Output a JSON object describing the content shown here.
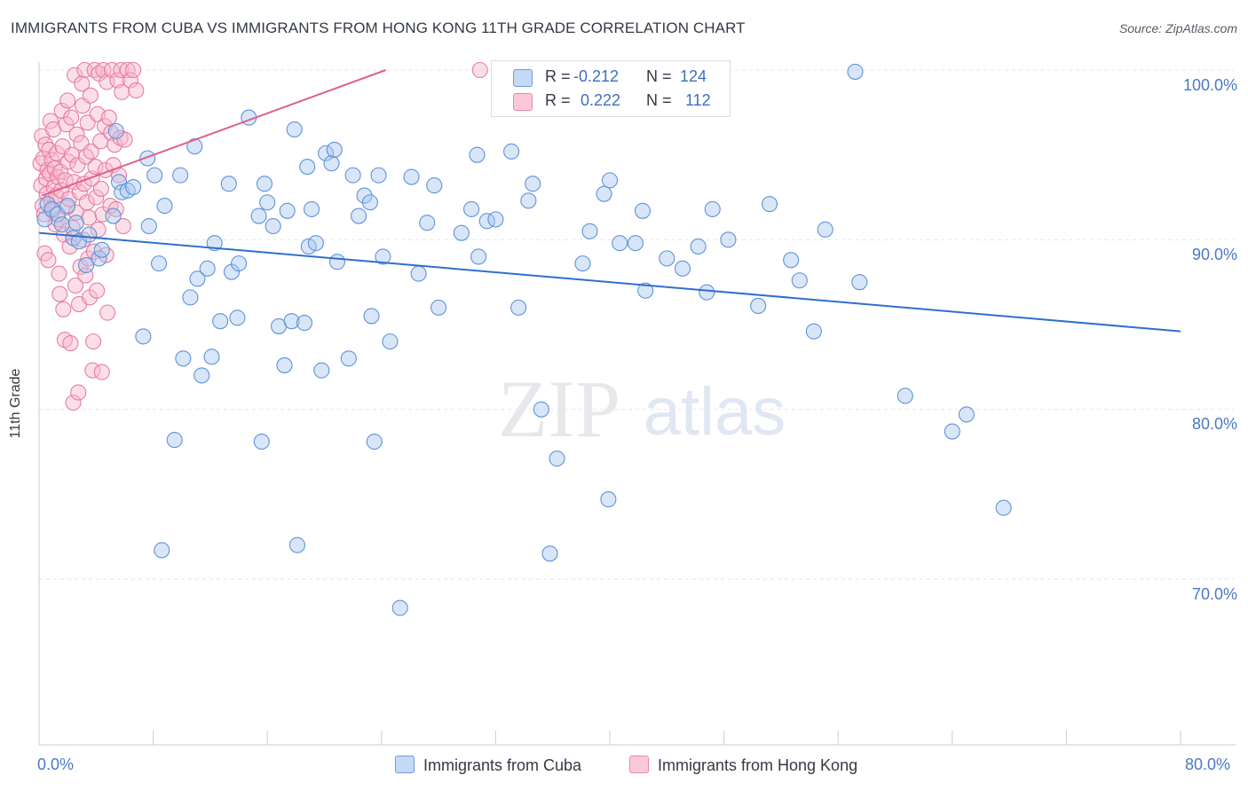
{
  "title": "IMMIGRANTS FROM CUBA VS IMMIGRANTS FROM HONG KONG 11TH GRADE CORRELATION CHART",
  "source": "Source: ZipAtlas.com",
  "watermark": {
    "zip": "ZIP",
    "atlas": "atlas"
  },
  "colors": {
    "cuba_fill": "#a8c8f0",
    "cuba_stroke": "#5f93d8",
    "cuba_line": "#2f6fcd",
    "hk_fill": "#f7b8cc",
    "hk_stroke": "#e97ca0",
    "hk_line": "#e0608c",
    "axis_label": "#4a78c6",
    "grid": "#e3e6ea"
  },
  "legend": {
    "cuba": {
      "r_label": "R =",
      "r_value": "-0.212",
      "n_label": "N =",
      "n_value": "124"
    },
    "hk": {
      "r_label": "R =",
      "r_value": "0.222",
      "n_label": "N =",
      "n_value": "112"
    }
  },
  "bottom_legend": {
    "cuba": "Immigrants from Cuba",
    "hk": "Immigrants from Hong Kong"
  },
  "chart_data": {
    "type": "scatter",
    "title": "IMMIGRANTS FROM CUBA VS IMMIGRANTS FROM HONG KONG 11TH GRADE CORRELATION CHART",
    "xlabel": "",
    "ylabel": "11th Grade",
    "xlim": [
      0,
      80
    ],
    "ylim": [
      60,
      101
    ],
    "x_tick_labels": [
      "0.0%",
      "80.0%"
    ],
    "y_ticks": [
      100,
      90,
      80,
      70
    ],
    "y_tick_labels": [
      "100.0%",
      "90.0%",
      "80.0%",
      "70.0%"
    ],
    "grid": true,
    "series": [
      {
        "name": "Immigrants from Cuba",
        "r": -0.212,
        "n": 124,
        "trend": {
          "x": [
            0,
            80
          ],
          "y": [
            90.4,
            84.6
          ]
        },
        "points": [
          [
            0.4,
            91.2
          ],
          [
            0.6,
            92.1
          ],
          [
            0.9,
            91.8
          ],
          [
            1.3,
            91.5
          ],
          [
            1.6,
            90.9
          ],
          [
            2.0,
            92.0
          ],
          [
            2.4,
            90.1
          ],
          [
            2.6,
            91.0
          ],
          [
            2.8,
            89.9
          ],
          [
            3.3,
            88.5
          ],
          [
            3.5,
            90.3
          ],
          [
            4.2,
            88.9
          ],
          [
            4.4,
            89.4
          ],
          [
            5.2,
            91.4
          ],
          [
            5.4,
            96.4
          ],
          [
            5.6,
            93.4
          ],
          [
            5.8,
            92.8
          ],
          [
            6.2,
            92.9
          ],
          [
            6.6,
            93.1
          ],
          [
            7.3,
            84.3
          ],
          [
            7.6,
            94.8
          ],
          [
            7.7,
            90.8
          ],
          [
            8.1,
            93.8
          ],
          [
            8.4,
            88.6
          ],
          [
            8.6,
            71.7
          ],
          [
            8.8,
            92.0
          ],
          [
            9.5,
            78.2
          ],
          [
            9.9,
            93.8
          ],
          [
            10.1,
            83.0
          ],
          [
            10.6,
            86.6
          ],
          [
            10.9,
            95.5
          ],
          [
            11.1,
            87.7
          ],
          [
            11.4,
            82.0
          ],
          [
            11.8,
            88.3
          ],
          [
            12.1,
            83.1
          ],
          [
            12.3,
            89.8
          ],
          [
            12.7,
            85.2
          ],
          [
            13.3,
            93.3
          ],
          [
            13.5,
            88.1
          ],
          [
            13.9,
            85.4
          ],
          [
            14.0,
            88.6
          ],
          [
            14.7,
            97.2
          ],
          [
            15.4,
            91.4
          ],
          [
            15.6,
            78.1
          ],
          [
            15.8,
            93.3
          ],
          [
            16.0,
            92.2
          ],
          [
            16.4,
            90.8
          ],
          [
            16.8,
            84.9
          ],
          [
            17.2,
            82.6
          ],
          [
            17.4,
            91.7
          ],
          [
            17.7,
            85.2
          ],
          [
            17.9,
            96.5
          ],
          [
            18.1,
            72.0
          ],
          [
            18.6,
            85.1
          ],
          [
            18.8,
            94.3
          ],
          [
            18.9,
            89.6
          ],
          [
            19.1,
            91.8
          ],
          [
            19.4,
            89.8
          ],
          [
            19.8,
            82.3
          ],
          [
            20.1,
            95.1
          ],
          [
            20.5,
            94.5
          ],
          [
            20.7,
            95.3
          ],
          [
            20.9,
            88.7
          ],
          [
            21.7,
            83.0
          ],
          [
            22.0,
            93.8
          ],
          [
            22.4,
            91.4
          ],
          [
            22.8,
            92.6
          ],
          [
            23.2,
            92.2
          ],
          [
            23.3,
            85.5
          ],
          [
            23.5,
            78.1
          ],
          [
            23.8,
            93.8
          ],
          [
            24.1,
            89.0
          ],
          [
            24.6,
            84.0
          ],
          [
            25.3,
            68.3
          ],
          [
            26.1,
            93.7
          ],
          [
            26.6,
            88.0
          ],
          [
            27.2,
            91.0
          ],
          [
            27.7,
            93.2
          ],
          [
            28.0,
            86.0
          ],
          [
            29.6,
            90.4
          ],
          [
            30.3,
            91.8
          ],
          [
            30.7,
            95.0
          ],
          [
            30.8,
            89.0
          ],
          [
            31.4,
            91.1
          ],
          [
            32.0,
            91.2
          ],
          [
            33.1,
            95.2
          ],
          [
            33.6,
            86.0
          ],
          [
            34.3,
            92.3
          ],
          [
            34.6,
            93.3
          ],
          [
            35.2,
            80.0
          ],
          [
            35.8,
            71.5
          ],
          [
            36.3,
            77.1
          ],
          [
            38.1,
            88.6
          ],
          [
            38.6,
            90.5
          ],
          [
            39.6,
            92.7
          ],
          [
            39.9,
            74.7
          ],
          [
            40.0,
            93.5
          ],
          [
            40.7,
            89.8
          ],
          [
            41.8,
            89.8
          ],
          [
            42.3,
            91.7
          ],
          [
            42.5,
            87.0
          ],
          [
            44.0,
            88.9
          ],
          [
            45.1,
            88.3
          ],
          [
            46.2,
            89.6
          ],
          [
            46.8,
            86.9
          ],
          [
            47.2,
            91.8
          ],
          [
            48.3,
            90.0
          ],
          [
            50.4,
            86.1
          ],
          [
            51.2,
            92.1
          ],
          [
            52.7,
            88.8
          ],
          [
            53.3,
            87.6
          ],
          [
            54.3,
            84.6
          ],
          [
            55.1,
            90.6
          ],
          [
            57.2,
            99.9
          ],
          [
            57.5,
            87.5
          ],
          [
            60.7,
            80.8
          ],
          [
            64.0,
            78.7
          ],
          [
            65.0,
            79.7
          ],
          [
            67.6,
            74.2
          ]
        ]
      },
      {
        "name": "Immigrants from Hong Kong",
        "r": 0.222,
        "n": 112,
        "trend": {
          "x": [
            0.2,
            24.3
          ],
          "y": [
            92.6,
            100.0
          ]
        },
        "points": [
          [
            0.1,
            94.5
          ],
          [
            0.15,
            93.2
          ],
          [
            0.2,
            96.1
          ],
          [
            0.25,
            92.0
          ],
          [
            0.3,
            94.8
          ],
          [
            0.35,
            91.5
          ],
          [
            0.4,
            89.2
          ],
          [
            0.45,
            95.6
          ],
          [
            0.5,
            93.6
          ],
          [
            0.55,
            92.7
          ],
          [
            0.6,
            94.1
          ],
          [
            0.65,
            88.8
          ],
          [
            0.7,
            95.3
          ],
          [
            0.75,
            93.9
          ],
          [
            0.8,
            97.0
          ],
          [
            0.85,
            92.3
          ],
          [
            0.9,
            94.7
          ],
          [
            0.95,
            91.7
          ],
          [
            1.0,
            96.5
          ],
          [
            1.05,
            93.1
          ],
          [
            1.1,
            94.2
          ],
          [
            1.15,
            90.9
          ],
          [
            1.2,
            92.6
          ],
          [
            1.25,
            95.1
          ],
          [
            1.3,
            93.7
          ],
          [
            1.35,
            91.2
          ],
          [
            1.4,
            88.0
          ],
          [
            1.45,
            86.8
          ],
          [
            1.5,
            94.0
          ],
          [
            1.55,
            92.9
          ],
          [
            1.6,
            97.6
          ],
          [
            1.65,
            95.5
          ],
          [
            1.7,
            85.9
          ],
          [
            1.75,
            90.3
          ],
          [
            1.8,
            84.1
          ],
          [
            1.85,
            93.5
          ],
          [
            1.9,
            96.8
          ],
          [
            1.95,
            91.9
          ],
          [
            2.0,
            98.2
          ],
          [
            2.05,
            94.6
          ],
          [
            2.1,
            92.4
          ],
          [
            2.15,
            89.6
          ],
          [
            2.2,
            83.9
          ],
          [
            2.25,
            97.2
          ],
          [
            2.3,
            95.0
          ],
          [
            2.35,
            90.7
          ],
          [
            2.4,
            80.4
          ],
          [
            2.45,
            93.4
          ],
          [
            2.5,
            99.7
          ],
          [
            2.55,
            87.3
          ],
          [
            2.6,
            91.6
          ],
          [
            2.65,
            96.2
          ],
          [
            2.7,
            94.4
          ],
          [
            2.75,
            81.0
          ],
          [
            2.8,
            86.2
          ],
          [
            2.85,
            92.8
          ],
          [
            2.9,
            88.4
          ],
          [
            2.95,
            95.7
          ],
          [
            3.0,
            99.2
          ],
          [
            3.05,
            97.9
          ],
          [
            3.1,
            90.0
          ],
          [
            3.15,
            93.3
          ],
          [
            3.2,
            100.0
          ],
          [
            3.25,
            87.9
          ],
          [
            3.3,
            94.9
          ],
          [
            3.35,
            92.2
          ],
          [
            3.4,
            96.9
          ],
          [
            3.45,
            88.9
          ],
          [
            3.5,
            91.3
          ],
          [
            3.55,
            86.6
          ],
          [
            3.6,
            98.5
          ],
          [
            3.65,
            95.2
          ],
          [
            3.7,
            93.6
          ],
          [
            3.75,
            82.3
          ],
          [
            3.8,
            84.0
          ],
          [
            3.85,
            89.3
          ],
          [
            3.9,
            100.0
          ],
          [
            3.95,
            94.3
          ],
          [
            4.0,
            92.5
          ],
          [
            4.05,
            87.0
          ],
          [
            4.1,
            97.4
          ],
          [
            4.15,
            90.6
          ],
          [
            4.2,
            99.8
          ],
          [
            4.3,
            95.8
          ],
          [
            4.35,
            93.0
          ],
          [
            4.4,
            82.2
          ],
          [
            4.45,
            91.5
          ],
          [
            4.5,
            100.0
          ],
          [
            4.6,
            96.7
          ],
          [
            4.65,
            94.1
          ],
          [
            4.7,
            89.1
          ],
          [
            4.75,
            99.3
          ],
          [
            4.8,
            85.7
          ],
          [
            4.9,
            97.2
          ],
          [
            5.0,
            92.0
          ],
          [
            5.05,
            96.3
          ],
          [
            5.1,
            100.0
          ],
          [
            5.2,
            94.4
          ],
          [
            5.3,
            95.6
          ],
          [
            5.4,
            91.8
          ],
          [
            5.5,
            99.4
          ],
          [
            5.6,
            93.8
          ],
          [
            5.7,
            96.0
          ],
          [
            5.75,
            100.0
          ],
          [
            5.8,
            98.7
          ],
          [
            5.9,
            90.8
          ],
          [
            6.0,
            95.9
          ],
          [
            6.2,
            100.0
          ],
          [
            6.4,
            99.4
          ],
          [
            6.6,
            100.0
          ],
          [
            6.8,
            98.8
          ],
          [
            30.9,
            100.0
          ]
        ]
      }
    ]
  }
}
